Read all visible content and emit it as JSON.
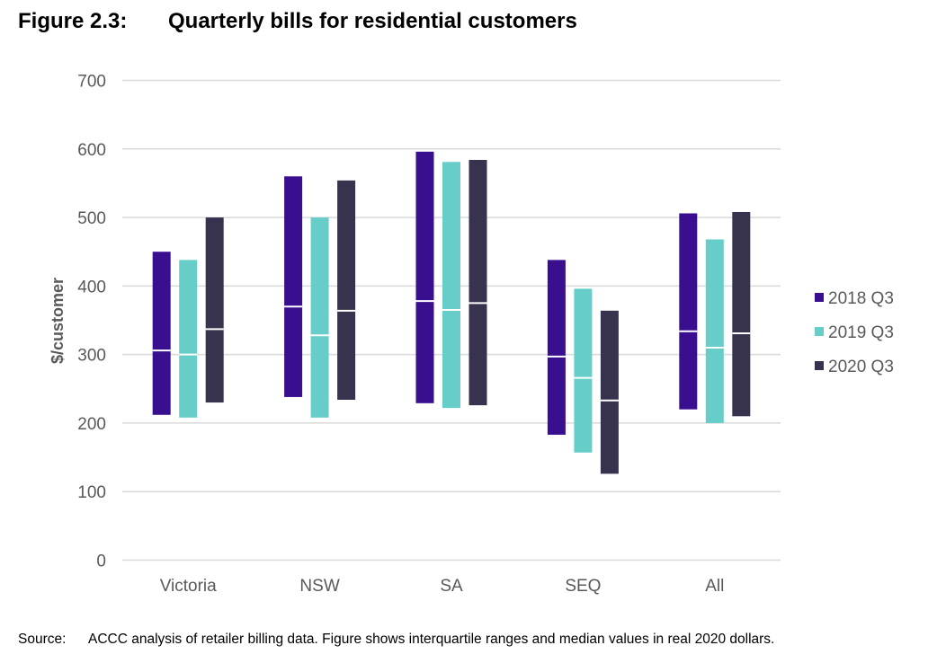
{
  "figure": {
    "number": "Figure 2.3:",
    "title": "Quarterly bills for residential customers"
  },
  "source": {
    "label": "Source:",
    "text": "ACCC analysis of retailer billing data. Figure shows interquartile ranges and median values in real 2020 dollars."
  },
  "chart_data": {
    "type": "bar",
    "subtype": "floating-range-with-median",
    "title": "Quarterly bills for residential customers",
    "xlabel": "",
    "ylabel": "$/customer",
    "ylim": [
      0,
      700
    ],
    "yticks": [
      0,
      100,
      200,
      300,
      400,
      500,
      600,
      700
    ],
    "grid": true,
    "legend_position": "right",
    "categories": [
      "Victoria",
      "NSW",
      "SA",
      "SEQ",
      "All"
    ],
    "series": [
      {
        "name": "2018 Q3",
        "color": "#3A0F8F",
        "low": [
          212,
          238,
          229,
          183,
          220
        ],
        "median": [
          306,
          370,
          378,
          297,
          334
        ],
        "high": [
          450,
          560,
          596,
          438,
          506
        ]
      },
      {
        "name": "2019 Q3",
        "color": "#66CDC8",
        "low": [
          208,
          208,
          222,
          157,
          200
        ],
        "median": [
          300,
          328,
          365,
          266,
          310
        ],
        "high": [
          438,
          500,
          581,
          396,
          468
        ]
      },
      {
        "name": "2020 Q3",
        "color": "#37334F",
        "low": [
          230,
          234,
          226,
          126,
          210
        ],
        "median": [
          337,
          364,
          375,
          233,
          331
        ],
        "high": [
          500,
          554,
          584,
          364,
          508
        ]
      }
    ]
  }
}
